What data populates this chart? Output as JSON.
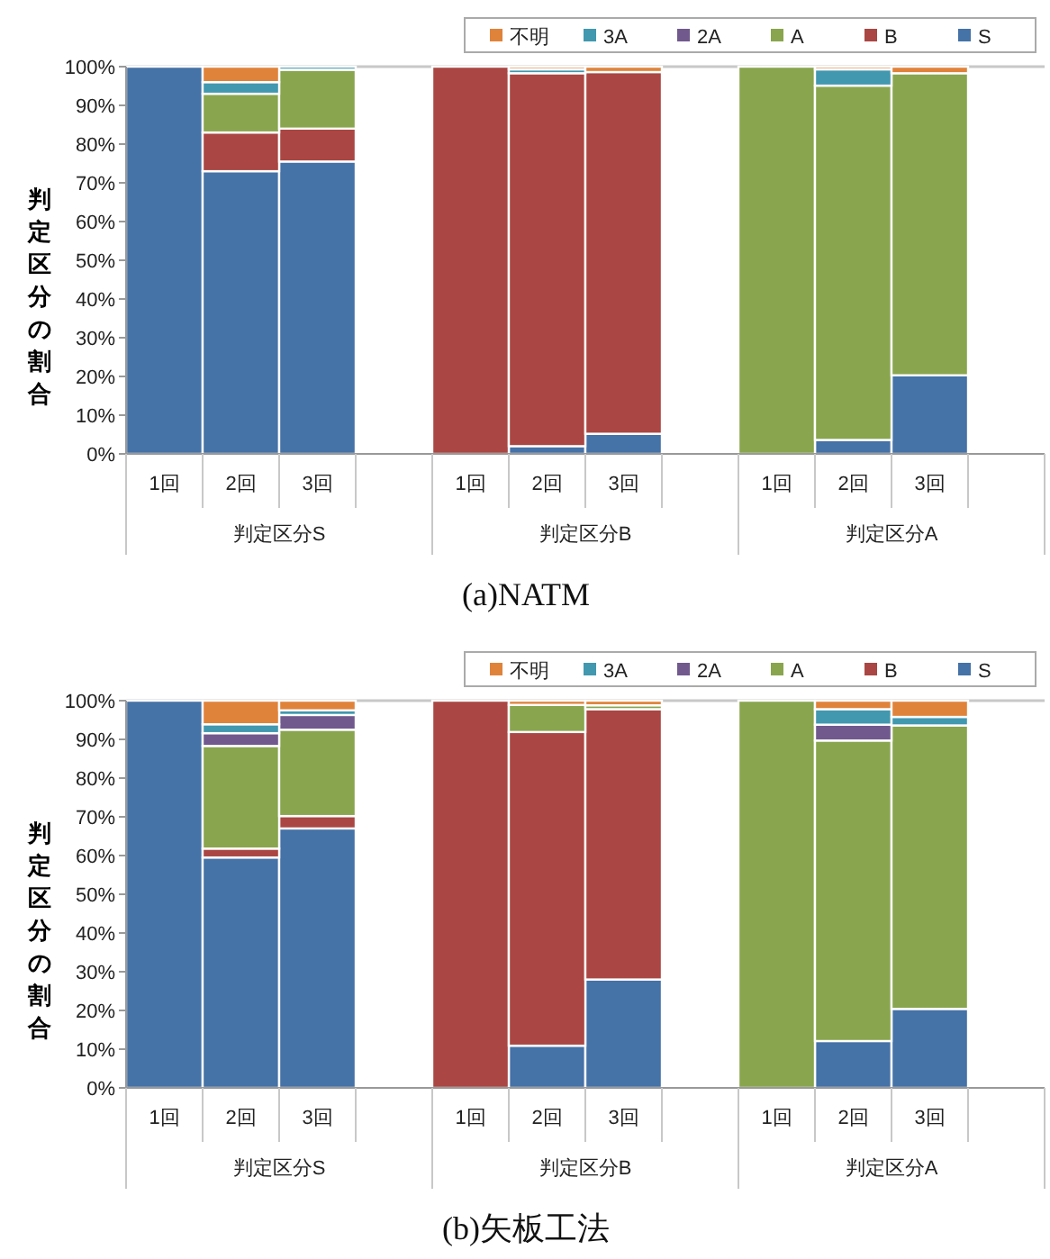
{
  "chart_data": [
    {
      "type": "bar",
      "stacked": true,
      "title": "(a)NATM",
      "ylabel": "判定区分の割合",
      "legend": "top right",
      "grid": false,
      "categories": [
        "1回",
        "2回",
        "3回",
        null,
        "1回",
        "2回",
        "3回",
        null,
        "1回",
        "2回",
        "3回",
        null
      ],
      "annotations": [
        "判定区分S",
        "判定区分B",
        "判定区分A"
      ],
      "ylim": [
        0,
        100
      ],
      "yticks": [
        {
          "value": 0,
          "label": "0%"
        },
        {
          "value": 10,
          "label": "10%"
        },
        {
          "value": 20,
          "label": "20%"
        },
        {
          "value": 30,
          "label": "30%"
        },
        {
          "value": 40,
          "label": "40%"
        },
        {
          "value": 50,
          "label": "50%"
        },
        {
          "value": 60,
          "label": "60%"
        },
        {
          "value": 70,
          "label": "70%"
        },
        {
          "value": 80,
          "label": "80%"
        },
        {
          "value": 90,
          "label": "90%"
        },
        {
          "value": 100,
          "label": "100%"
        }
      ],
      "series": [
        {
          "name": "S",
          "color": "#4572a7",
          "values": [
            100,
            73,
            75.5,
            null,
            null,
            2,
            5.2,
            null,
            null,
            3.6,
            20.3,
            null
          ]
        },
        {
          "name": "B",
          "color": "#aa4643",
          "values": [
            null,
            10,
            8.5,
            null,
            100,
            96.3,
            93.4,
            null,
            null,
            null,
            null,
            null
          ]
        },
        {
          "name": "A",
          "color": "#89a54e",
          "values": [
            null,
            10,
            15.2,
            null,
            null,
            null,
            null,
            null,
            100,
            91.5,
            78,
            null
          ]
        },
        {
          "name": "2A",
          "color": "#71598e",
          "values": [
            null,
            null,
            null,
            null,
            null,
            null,
            null,
            null,
            null,
            null,
            null,
            null
          ]
        },
        {
          "name": "3A",
          "color": "#4198af",
          "values": [
            null,
            3,
            0.8,
            null,
            null,
            1,
            null,
            null,
            null,
            4.2,
            null,
            null
          ]
        },
        {
          "name": "不明",
          "color": "#e0833a",
          "values": [
            null,
            4,
            null,
            null,
            null,
            0.7,
            1.4,
            null,
            null,
            0.7,
            1.7,
            null
          ]
        }
      ]
    },
    {
      "type": "bar",
      "stacked": true,
      "title": "(b)矢板工法",
      "ylabel": "判定区分の割合",
      "legend": "top right",
      "grid": false,
      "categories": [
        "1回",
        "2回",
        "3回",
        null,
        "1回",
        "2回",
        "3回",
        null,
        "1回",
        "2回",
        "3回",
        null
      ],
      "annotations": [
        "判定区分S",
        "判定区分B",
        "判定区分A"
      ],
      "ylim": [
        0,
        100
      ],
      "yticks": [
        {
          "value": 0,
          "label": "0%"
        },
        {
          "value": 10,
          "label": "10%"
        },
        {
          "value": 20,
          "label": "20%"
        },
        {
          "value": 30,
          "label": "30%"
        },
        {
          "value": 40,
          "label": "40%"
        },
        {
          "value": 50,
          "label": "50%"
        },
        {
          "value": 60,
          "label": "60%"
        },
        {
          "value": 70,
          "label": "70%"
        },
        {
          "value": 80,
          "label": "80%"
        },
        {
          "value": 90,
          "label": "90%"
        },
        {
          "value": 100,
          "label": "100%"
        }
      ],
      "series": [
        {
          "name": "S",
          "color": "#4572a7",
          "values": [
            100,
            59.5,
            67,
            null,
            null,
            10.9,
            28,
            null,
            null,
            12.1,
            20.4,
            null
          ]
        },
        {
          "name": "B",
          "color": "#aa4643",
          "values": [
            null,
            2.3,
            3.2,
            null,
            100,
            81,
            69.8,
            null,
            null,
            null,
            null,
            null
          ]
        },
        {
          "name": "A",
          "color": "#89a54e",
          "values": [
            null,
            26.5,
            22.3,
            null,
            null,
            7,
            1,
            null,
            100,
            77.6,
            73.2,
            null
          ]
        },
        {
          "name": "2A",
          "color": "#71598e",
          "values": [
            null,
            3.3,
            3.8,
            null,
            null,
            null,
            null,
            null,
            null,
            4.1,
            null,
            null
          ]
        },
        {
          "name": "3A",
          "color": "#4198af",
          "values": [
            null,
            2.3,
            1.2,
            null,
            null,
            null,
            null,
            null,
            null,
            4,
            2.2,
            null
          ]
        },
        {
          "name": "不明",
          "color": "#e0833a",
          "values": [
            null,
            6.1,
            2.5,
            null,
            null,
            1.1,
            1.2,
            null,
            null,
            2.2,
            4.2,
            null
          ]
        }
      ]
    }
  ]
}
